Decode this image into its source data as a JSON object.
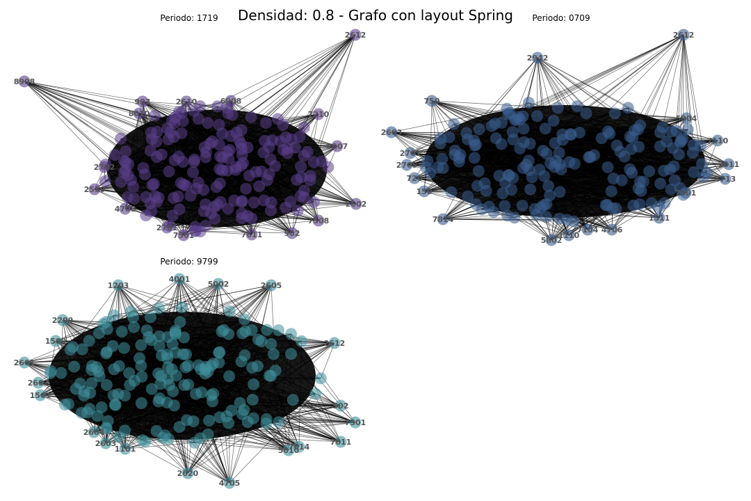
{
  "figure": {
    "title": "Densidad: 0.8 - Grafo con layout Spring"
  },
  "chart_data": [
    {
      "type": "network",
      "layout": "spring",
      "title": "Periodo: 1719",
      "node_color": "#5b3f8c",
      "labels": [
        "2612",
        "8908",
        "903",
        "2610",
        "6908",
        "7210",
        "8907",
        "2702",
        "2550",
        "4708",
        "2602",
        "7508",
        "2701",
        "7501",
        "902",
        "7611",
        "8010"
      ]
    },
    {
      "type": "network",
      "layout": "spring",
      "title": "Periodo: 0709",
      "node_color": "#3b5f8f",
      "labels": [
        "2612",
        "2942",
        "750",
        "2603",
        "5904",
        "7110",
        "2611",
        "4713",
        "7401",
        "1511",
        "4706",
        "5802",
        "1110",
        "7104",
        "7814",
        "720",
        "150",
        "2701",
        "2705"
      ]
    },
    {
      "type": "network",
      "layout": "spring",
      "title": "Periodo: 9799",
      "node_color": "#3f8f9c",
      "labels": [
        "4001",
        "1203",
        "5002",
        "2605",
        "2209",
        "2612",
        "2601",
        "2602",
        "1501",
        "2604",
        "502",
        "7501",
        "7611",
        "5010",
        "7614",
        "2620",
        "4705",
        "1101",
        "2603",
        "1500"
      ]
    }
  ]
}
